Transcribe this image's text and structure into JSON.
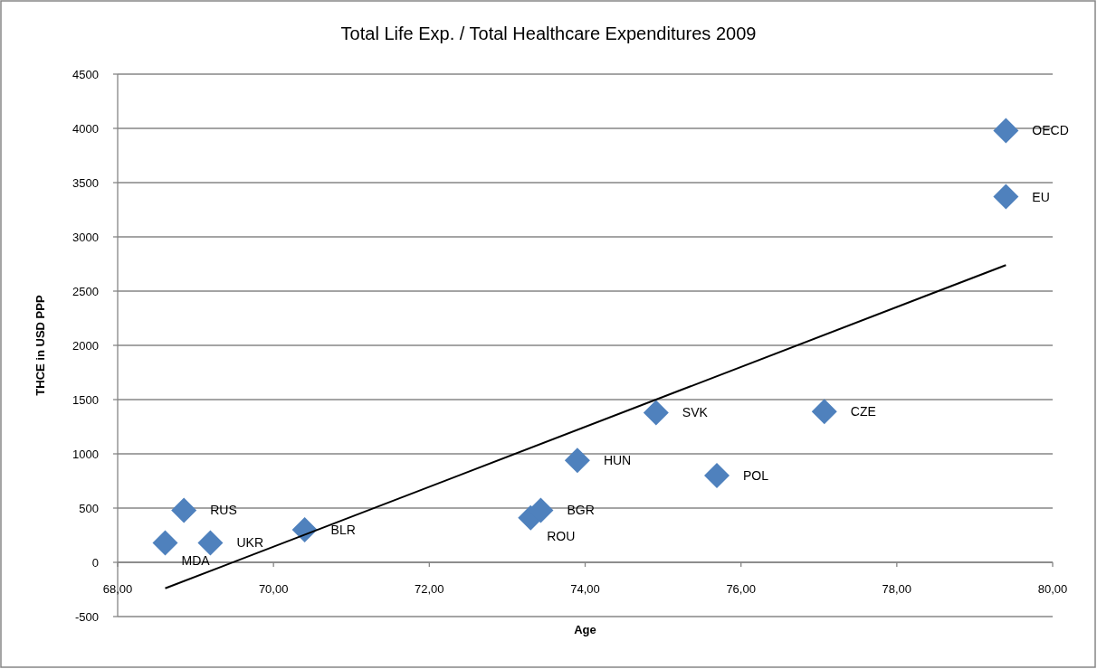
{
  "chart_data": {
    "type": "scatter",
    "title": "Total Life Exp. / Total Healthcare Expenditures 2009",
    "xlabel": "Age",
    "ylabel": "THCE in USD PPP",
    "x": [
      68.61,
      68.85,
      69.19,
      70.4,
      73.3,
      73.43,
      73.9,
      74.91,
      75.69,
      77.07,
      79.4,
      79.4
    ],
    "series": [
      {
        "color": "#4f81bd",
        "marker": "diamond",
        "values": [
          180,
          480,
          180,
          300,
          410,
          480,
          940,
          1380,
          800,
          1390,
          3980,
          3370
        ]
      },
      {
        "type": "line",
        "color": "#000000",
        "x": [
          68.61,
          79.4
        ],
        "values": [
          -240,
          2740
        ]
      }
    ],
    "annotations": [
      {
        "text": "MDA",
        "x": 68.61,
        "y": 180
      },
      {
        "text": "RUS",
        "x": 68.85,
        "y": 480
      },
      {
        "text": "UKR",
        "x": 69.19,
        "y": 180
      },
      {
        "text": "BLR",
        "x": 70.4,
        "y": 300
      },
      {
        "text": "ROU",
        "x": 73.3,
        "y": 410
      },
      {
        "text": "BGR",
        "x": 73.43,
        "y": 480
      },
      {
        "text": "HUN",
        "x": 73.9,
        "y": 940
      },
      {
        "text": "SVK",
        "x": 74.91,
        "y": 1380
      },
      {
        "text": "POL",
        "x": 75.69,
        "y": 800
      },
      {
        "text": "CZE",
        "x": 77.07,
        "y": 1390
      },
      {
        "text": "OECD",
        "x": 79.4,
        "y": 3980
      },
      {
        "text": "EU",
        "x": 79.4,
        "y": 3370
      }
    ],
    "xlim": [
      68,
      80
    ],
    "xticks": [
      {
        "value": 68,
        "label": "68,00"
      },
      {
        "value": 70,
        "label": "70,00"
      },
      {
        "value": 72,
        "label": "72,00"
      },
      {
        "value": 74,
        "label": "74,00"
      },
      {
        "value": 76,
        "label": "76,00"
      },
      {
        "value": 78,
        "label": "78,00"
      },
      {
        "value": 80,
        "label": "80,00"
      }
    ],
    "ylim": [
      -500,
      4500
    ],
    "yticks": [
      -500,
      0,
      500,
      1000,
      1500,
      2000,
      2500,
      3000,
      3500,
      4000,
      4500
    ],
    "grid": "y"
  }
}
